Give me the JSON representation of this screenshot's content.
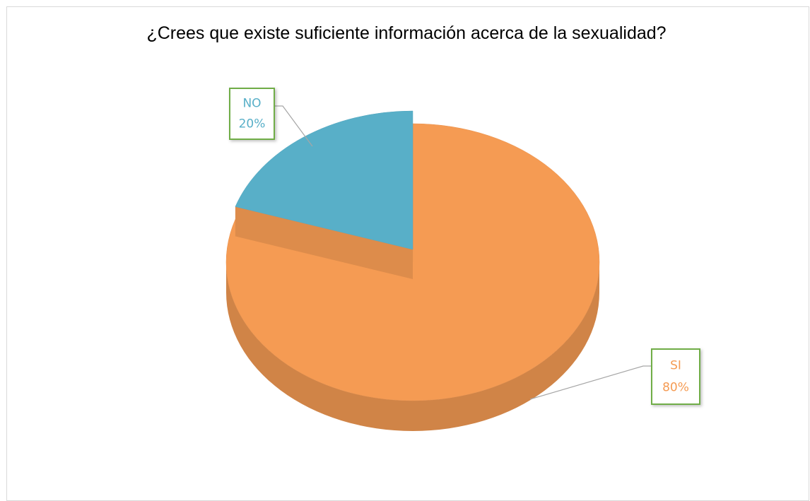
{
  "chart_data": {
    "type": "pie",
    "title": "¿Crees que existe suficiente información acerca de la sexualidad?",
    "categories": [
      "SI",
      "NO"
    ],
    "values": [
      80,
      20
    ],
    "value_labels": [
      "80%",
      "20%"
    ],
    "colors": [
      "#f59b53",
      "#58afc8"
    ],
    "three_d": true
  }
}
